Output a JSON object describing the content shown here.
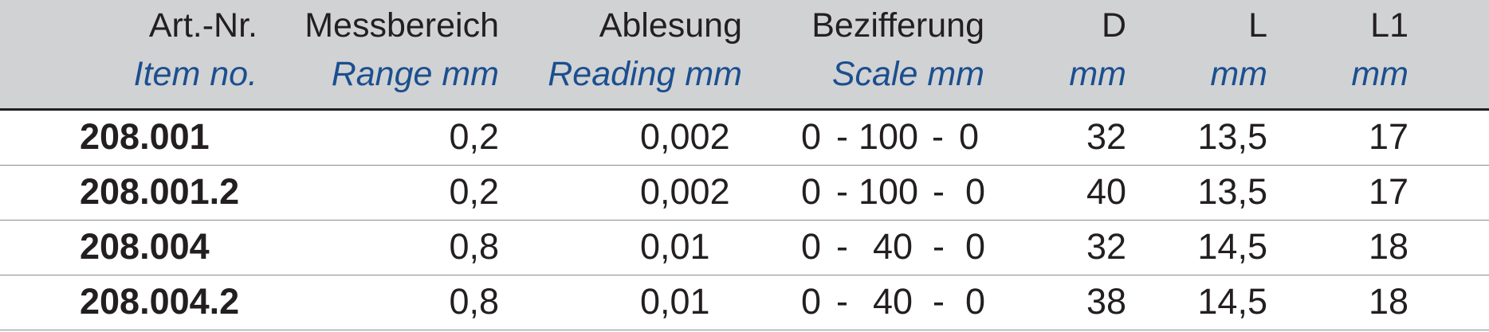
{
  "table": {
    "headers": [
      {
        "de": "Art.-Nr.",
        "en": "Item no."
      },
      {
        "de": "Messbereich",
        "en": "Range mm"
      },
      {
        "de": "Ablesung",
        "en": "Reading mm"
      },
      {
        "de": "Bezifferung",
        "en": "Scale mm"
      },
      {
        "de": "D",
        "en": "mm"
      },
      {
        "de": "L",
        "en": "mm"
      },
      {
        "de": "L1",
        "en": "mm"
      }
    ],
    "rows": [
      {
        "item": "208.001",
        "range": "0,2",
        "reading": "0,002",
        "scale": [
          "0",
          "-",
          "100",
          "-",
          "0"
        ],
        "d": "32",
        "l": "13,5",
        "l1": "17"
      },
      {
        "item": "208.001.2",
        "range": "0,2",
        "reading": "0,002",
        "scale": [
          "0",
          "-",
          "100",
          "-",
          "0"
        ],
        "d": "40",
        "l": "13,5",
        "l1": "17"
      },
      {
        "item": "208.004",
        "range": "0,8",
        "reading": "0,01",
        "scale": [
          "0",
          "-",
          "40",
          "-",
          "0"
        ],
        "d": "32",
        "l": "14,5",
        "l1": "18"
      },
      {
        "item": "208.004.2",
        "range": "0,8",
        "reading": "0,01",
        "scale": [
          "0",
          "-",
          "40",
          "-",
          "0"
        ],
        "d": "38",
        "l": "14,5",
        "l1": "18"
      }
    ]
  }
}
